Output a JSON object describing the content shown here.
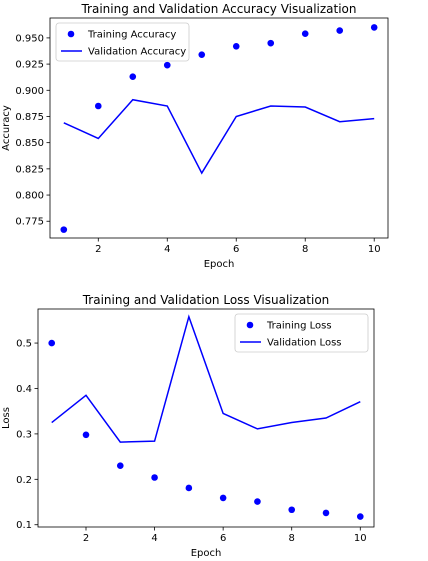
{
  "chart_data": [
    {
      "type": "line",
      "title": "Training and Validation Accuracy Visualization",
      "xlabel": "Epoch",
      "ylabel": "Accuracy",
      "xlim": [
        0.6,
        10.4
      ],
      "ylim": [
        0.759,
        0.969
      ],
      "x_ticks": [
        2,
        4,
        6,
        8,
        10
      ],
      "y_ticks": [
        0.775,
        0.8,
        0.825,
        0.85,
        0.875,
        0.9,
        0.925,
        0.95
      ],
      "y_tick_labels": [
        "0.775",
        "0.800",
        "0.825",
        "0.850",
        "0.875",
        "0.900",
        "0.925",
        "0.950"
      ],
      "legend_position": "upper-left",
      "x": [
        1,
        2,
        3,
        4,
        5,
        6,
        7,
        8,
        9,
        10
      ],
      "series": [
        {
          "name": "Training Accuracy",
          "style": "points",
          "color": "#0000ff",
          "values": [
            0.767,
            0.885,
            0.913,
            0.924,
            0.934,
            0.942,
            0.945,
            0.954,
            0.957,
            0.96
          ]
        },
        {
          "name": "Validation Accuracy",
          "style": "line",
          "color": "#0000ff",
          "values": [
            0.869,
            0.854,
            0.891,
            0.885,
            0.821,
            0.875,
            0.885,
            0.884,
            0.87,
            0.873
          ]
        }
      ]
    },
    {
      "type": "line",
      "title": "Training and Validation Loss Visualization",
      "xlabel": "Epoch",
      "ylabel": "Loss",
      "xlim": [
        0.6,
        10.4
      ],
      "ylim": [
        0.095,
        0.575
      ],
      "x_ticks": [
        2,
        4,
        6,
        8,
        10
      ],
      "y_ticks": [
        0.1,
        0.2,
        0.3,
        0.4,
        0.5
      ],
      "y_tick_labels": [
        "0.1",
        "0.2",
        "0.3",
        "0.4",
        "0.5"
      ],
      "legend_position": "upper-right",
      "x": [
        1,
        2,
        3,
        4,
        5,
        6,
        7,
        8,
        9,
        10
      ],
      "series": [
        {
          "name": "Training Loss",
          "style": "points",
          "color": "#0000ff",
          "values": [
            0.5,
            0.298,
            0.23,
            0.204,
            0.181,
            0.159,
            0.151,
            0.133,
            0.126,
            0.118
          ]
        },
        {
          "name": "Validation Loss",
          "style": "line",
          "color": "#0000ff",
          "values": [
            0.325,
            0.385,
            0.282,
            0.284,
            0.558,
            0.345,
            0.311,
            0.325,
            0.335,
            0.371
          ]
        }
      ]
    }
  ]
}
